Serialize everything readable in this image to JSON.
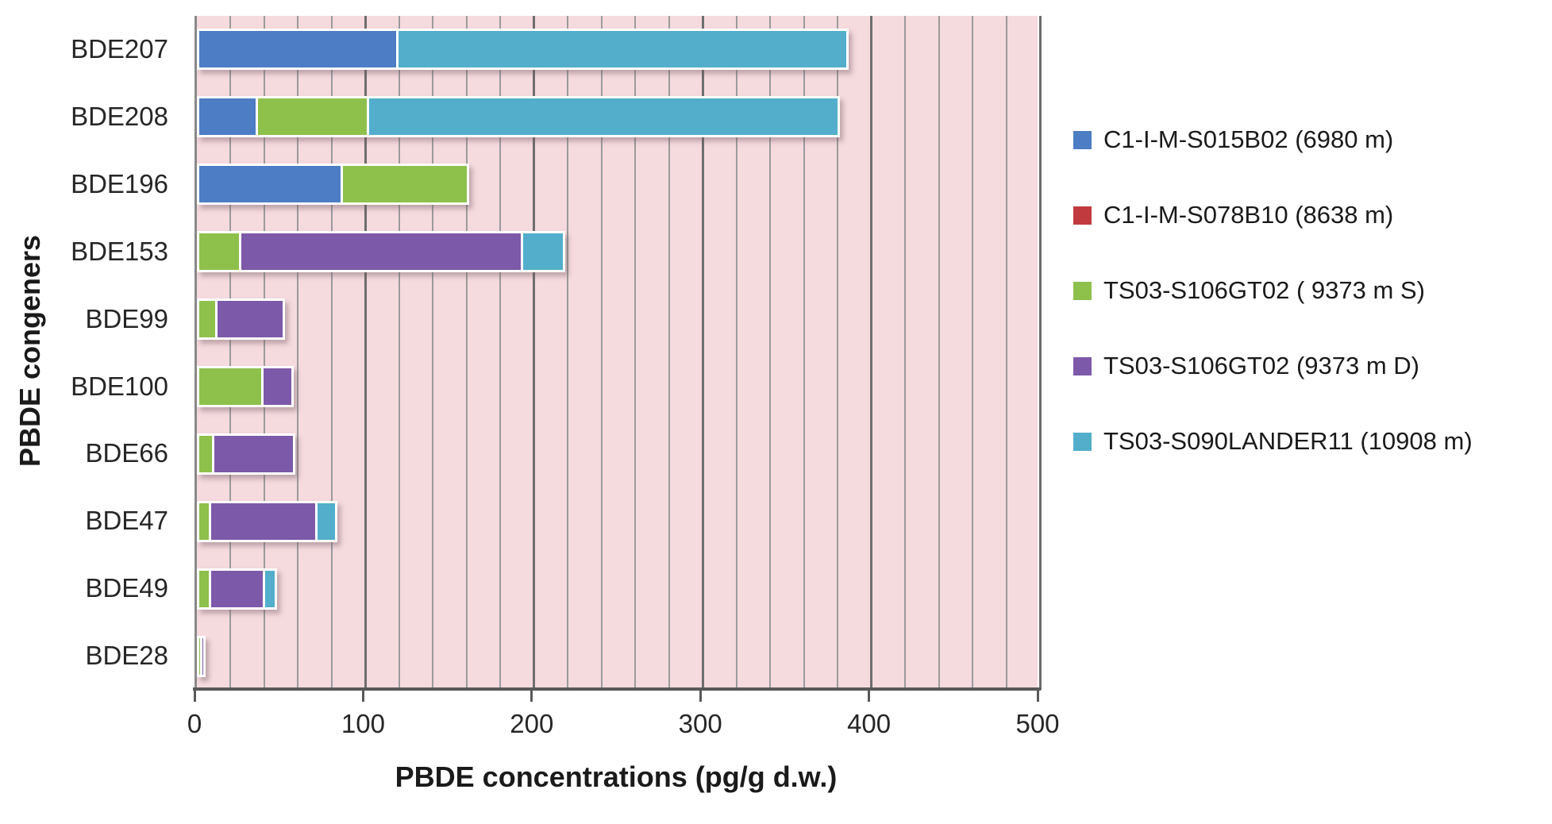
{
  "chart_data": {
    "type": "bar",
    "orientation": "horizontal",
    "stacked": true,
    "title": "",
    "xlabel": "PBDE concentrations (pg/g d.w.)",
    "ylabel": "PBDE congeners",
    "xlim": [
      0,
      500
    ],
    "x_ticks": [
      0,
      100,
      200,
      300,
      400,
      500
    ],
    "minor_grid_step": 20,
    "major_grid_step": 100,
    "grid": true,
    "legend_position": "right",
    "categories": [
      "BDE207",
      "BDE208",
      "BDE196",
      "BDE153",
      "BDE99",
      "BDE100",
      "BDE66",
      "BDE47",
      "BDE49",
      "BDE28"
    ],
    "series": [
      {
        "name": "C1-I-M-S015B02 (6980 m)",
        "color": "#4d7dc4",
        "values": [
          118,
          35,
          85,
          0,
          0,
          0,
          0,
          0,
          0,
          0
        ]
      },
      {
        "name": "C1-I-M-S078B10 (8638 m)",
        "color": "#c13b3e",
        "values": [
          0,
          0,
          0,
          0,
          0,
          0,
          0,
          0,
          0,
          0
        ]
      },
      {
        "name": "TS03-S106GT02 ( 9373 m S)",
        "color": "#8ec04c",
        "values": [
          0,
          66,
          75,
          25,
          11,
          38,
          9,
          7,
          7,
          1
        ]
      },
      {
        "name": "TS03-S106GT02 (9373 m D)",
        "color": "#7d59a9",
        "values": [
          0,
          0,
          0,
          167,
          40,
          18,
          48,
          63,
          32,
          1
        ]
      },
      {
        "name": "TS03-S090LANDER11 (10908 m)",
        "color": "#52aecb",
        "values": [
          267,
          279,
          0,
          25,
          0,
          0,
          0,
          12,
          7,
          0
        ]
      }
    ]
  },
  "style_colors": {
    "plot_background": "#f5dade",
    "grid_minor": "#9b9b9b",
    "grid_major": "#6e6e6e",
    "axis_line": "#595959",
    "text": "#262626",
    "bar_border": "#ffffff"
  }
}
